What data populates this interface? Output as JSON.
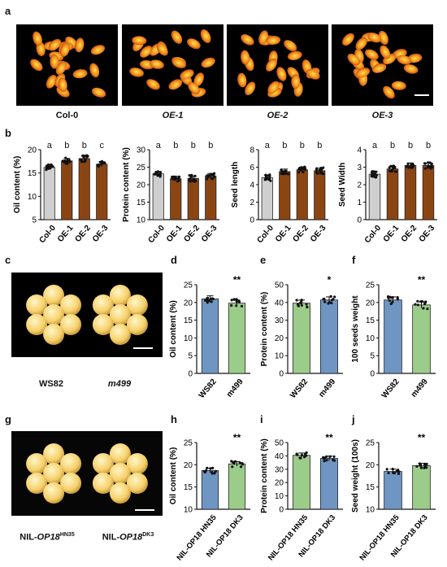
{
  "panels": {
    "a": "a",
    "b": "b",
    "c": "c",
    "d": "d",
    "e": "e",
    "f": "f",
    "g": "g",
    "h": "h",
    "i": "i",
    "j": "j"
  },
  "photo_labels_a": [
    "Col-0",
    "OE-1",
    "OE-2",
    "OE-3"
  ],
  "soy_labels_c": [
    "WS82",
    "m499"
  ],
  "nil_labels_g": {
    "left": {
      "base": "NIL-",
      "gene": "OP18",
      "sup": "HN35"
    },
    "right": {
      "base": "NIL-",
      "gene": "OP18",
      "sup": "DK3"
    }
  },
  "colors": {
    "gray": "#cfcfcf",
    "brown": "#8b4513",
    "blue": "#6f95c3",
    "green": "#9ccc8a",
    "seed_orange": "#f08a1c",
    "seed_yellow": "#f6d06a"
  },
  "chart_data": [
    {
      "id": "b1",
      "type": "bar",
      "ylabel": "Oil content (%)",
      "yticks": [
        5,
        10,
        15,
        20
      ],
      "ylim": [
        5,
        20
      ],
      "categories": [
        "Col-0",
        "OE-1",
        "OE-2",
        "OE-3"
      ],
      "values": [
        16.2,
        17.6,
        18.1,
        16.9
      ],
      "letters": [
        "a",
        "b",
        "b",
        "c"
      ],
      "colors": [
        "gray",
        "brown",
        "brown",
        "brown"
      ]
    },
    {
      "id": "b2",
      "type": "bar",
      "ylabel": "Protein content (%)",
      "yticks": [
        10,
        15,
        20,
        25,
        30
      ],
      "ylim": [
        10,
        30
      ],
      "categories": [
        "Col-0",
        "OE-1",
        "OE-2",
        "OE-3"
      ],
      "values": [
        23.1,
        21.7,
        21.8,
        22.5
      ],
      "letters": [
        "a",
        "b",
        "b",
        "b"
      ],
      "colors": [
        "gray",
        "brown",
        "brown",
        "brown"
      ]
    },
    {
      "id": "b3",
      "type": "bar",
      "ylabel": "Seed length",
      "yticks": [
        0,
        2,
        4,
        6,
        8
      ],
      "ylim": [
        0,
        8
      ],
      "categories": [
        "Col-0",
        "OE-1",
        "OE-2",
        "OE-3"
      ],
      "values": [
        4.8,
        5.5,
        5.7,
        5.6
      ],
      "letters": [
        "a",
        "b",
        "b",
        "b"
      ],
      "colors": [
        "gray",
        "brown",
        "brown",
        "brown"
      ]
    },
    {
      "id": "b4",
      "type": "bar",
      "ylabel": "Seed Width",
      "yticks": [
        0,
        1,
        2,
        3,
        4
      ],
      "ylim": [
        0,
        4
      ],
      "categories": [
        "Col-0",
        "OE-1",
        "OE-2",
        "OE-3"
      ],
      "values": [
        2.6,
        2.9,
        3.1,
        3.1
      ],
      "letters": [
        "a",
        "b",
        "b",
        "b"
      ],
      "colors": [
        "gray",
        "brown",
        "brown",
        "brown"
      ]
    },
    {
      "id": "d",
      "type": "bar",
      "ylabel": "Oil content (%)",
      "yticks": [
        0,
        5,
        10,
        15,
        20,
        25
      ],
      "ylim": [
        0,
        25
      ],
      "categories": [
        "WS82",
        "m499"
      ],
      "values": [
        21.0,
        19.8
      ],
      "sig": "**",
      "colors": [
        "blue",
        "green"
      ]
    },
    {
      "id": "e",
      "type": "bar",
      "ylabel": "Protein content (%)",
      "yticks": [
        0,
        10,
        20,
        30,
        40,
        50
      ],
      "ylim": [
        0,
        50
      ],
      "categories": [
        "WS82",
        "m499"
      ],
      "values": [
        39.6,
        41.4
      ],
      "sig": "*",
      "colors": [
        "green",
        "blue"
      ]
    },
    {
      "id": "f",
      "type": "bar",
      "ylabel": "100 seeds weight",
      "yticks": [
        0,
        5,
        10,
        15,
        20,
        25
      ],
      "ylim": [
        0,
        25
      ],
      "categories": [
        "WS82",
        "m499"
      ],
      "values": [
        20.7,
        19.3
      ],
      "sig": "**",
      "colors": [
        "blue",
        "green"
      ]
    },
    {
      "id": "h",
      "type": "bar",
      "ylabel": "Oil content (%)",
      "yticks": [
        10,
        15,
        20,
        25
      ],
      "ylim": [
        10,
        25
      ],
      "categories": [
        "NIL-OP18 HN35",
        "NIL-OP18 DK3"
      ],
      "values": [
        18.7,
        20.2
      ],
      "sig": "**",
      "colors": [
        "blue",
        "green"
      ]
    },
    {
      "id": "i",
      "type": "bar",
      "ylabel": "Protein content (%)",
      "yticks": [
        0,
        10,
        20,
        30,
        40,
        50
      ],
      "ylim": [
        0,
        50
      ],
      "categories": [
        "NIL-OP18 HN35",
        "NIL-OP18 DK3"
      ],
      "values": [
        40.4,
        38.1
      ],
      "sig": "**",
      "colors": [
        "green",
        "blue"
      ]
    },
    {
      "id": "j",
      "type": "bar",
      "ylabel": "Seed weight (100s)",
      "yticks": [
        10,
        15,
        20,
        25
      ],
      "ylim": [
        10,
        25
      ],
      "categories": [
        "NIL-OP18 HN35",
        "NIL-OP18 DK3"
      ],
      "values": [
        18.5,
        19.8
      ],
      "sig": "**",
      "colors": [
        "blue",
        "green"
      ]
    }
  ]
}
